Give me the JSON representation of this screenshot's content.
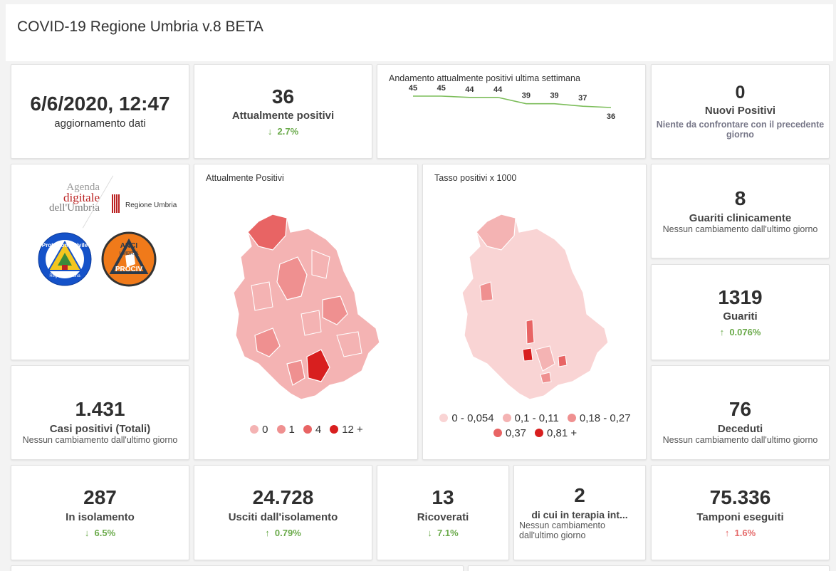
{
  "header": {
    "title": "COVID-19 Regione Umbria v.8 BETA"
  },
  "update": {
    "value": "6/6/2020, 12:47",
    "label": "aggiornamento dati"
  },
  "attivi": {
    "value": "36",
    "label": "Attualmente positivi",
    "delta": "2.7%",
    "arrow": "↓"
  },
  "trend": {
    "title": "Andamento attualmente positivi ultima settimana",
    "chart_data": {
      "type": "line",
      "values": [
        45,
        45,
        44,
        44,
        39,
        39,
        37,
        36
      ],
      "labels": [
        "45",
        "45",
        "44",
        "44",
        "39",
        "39",
        "37",
        "36"
      ]
    }
  },
  "nuovi": {
    "value": "0",
    "label": "Nuovi Positivi",
    "note": "Niente da confrontare con il precedente giorno"
  },
  "logos": {
    "agenda_top": "Agenda",
    "agenda_mid": "digitale",
    "agenda_bot": "dell'Umbria",
    "regione": "Regione Umbria",
    "pc": "Protezione Civile",
    "pc_sub": "Regione Umbria",
    "anci": "ANCI",
    "anci_mid": "UMBRIA",
    "anci_bot": "PROCIV"
  },
  "map1": {
    "title": "Attualmente Positivi",
    "legend": [
      {
        "label": "0",
        "color": "#f4b3b3"
      },
      {
        "label": "1",
        "color": "#ef9090"
      },
      {
        "label": "4",
        "color": "#e86464"
      },
      {
        "label": "12 +",
        "color": "#d81f1f"
      }
    ]
  },
  "map2": {
    "title": "Tasso positivi x 1000",
    "legend": [
      {
        "label": "0 - 0,054",
        "color": "#f9d4d4"
      },
      {
        "label": "0,1 - 0,11",
        "color": "#f4b3b3"
      },
      {
        "label": "0,18 - 0,27",
        "color": "#ef9090"
      },
      {
        "label": "0,37",
        "color": "#e86464"
      },
      {
        "label": "0,81 +",
        "color": "#d81f1f"
      }
    ]
  },
  "guariti_clin": {
    "value": "8",
    "label": "Guariti clinicamente",
    "sub": "Nessun cambiamento dall'ultimo giorno"
  },
  "guariti": {
    "value": "1319",
    "label": "Guariti",
    "delta": "0.076%",
    "arrow": "↑"
  },
  "casi": {
    "value": "1.431",
    "label": "Casi positivi (Totali)",
    "sub": "Nessun cambiamento dall'ultimo giorno"
  },
  "deceduti": {
    "value": "76",
    "label": "Deceduti",
    "sub": "Nessun cambiamento dall'ultimo giorno"
  },
  "isolamento": {
    "value": "287",
    "label": "In isolamento",
    "delta": "6.5%",
    "arrow": "↓"
  },
  "usciti": {
    "value": "24.728",
    "label": "Usciti dall'isolamento",
    "delta": "0.79%",
    "arrow": "↑"
  },
  "ricoverati": {
    "value": "13",
    "label": "Ricoverati",
    "delta": "7.1%",
    "arrow": "↓"
  },
  "terapia": {
    "value": "2",
    "label": "di cui in terapia int...",
    "sub": "Nessun cambiamento dall'ultimo giorno"
  },
  "tamponi": {
    "value": "75.336",
    "label": "Tamponi eseguiti",
    "delta": "1.6%",
    "arrow": "↑"
  }
}
